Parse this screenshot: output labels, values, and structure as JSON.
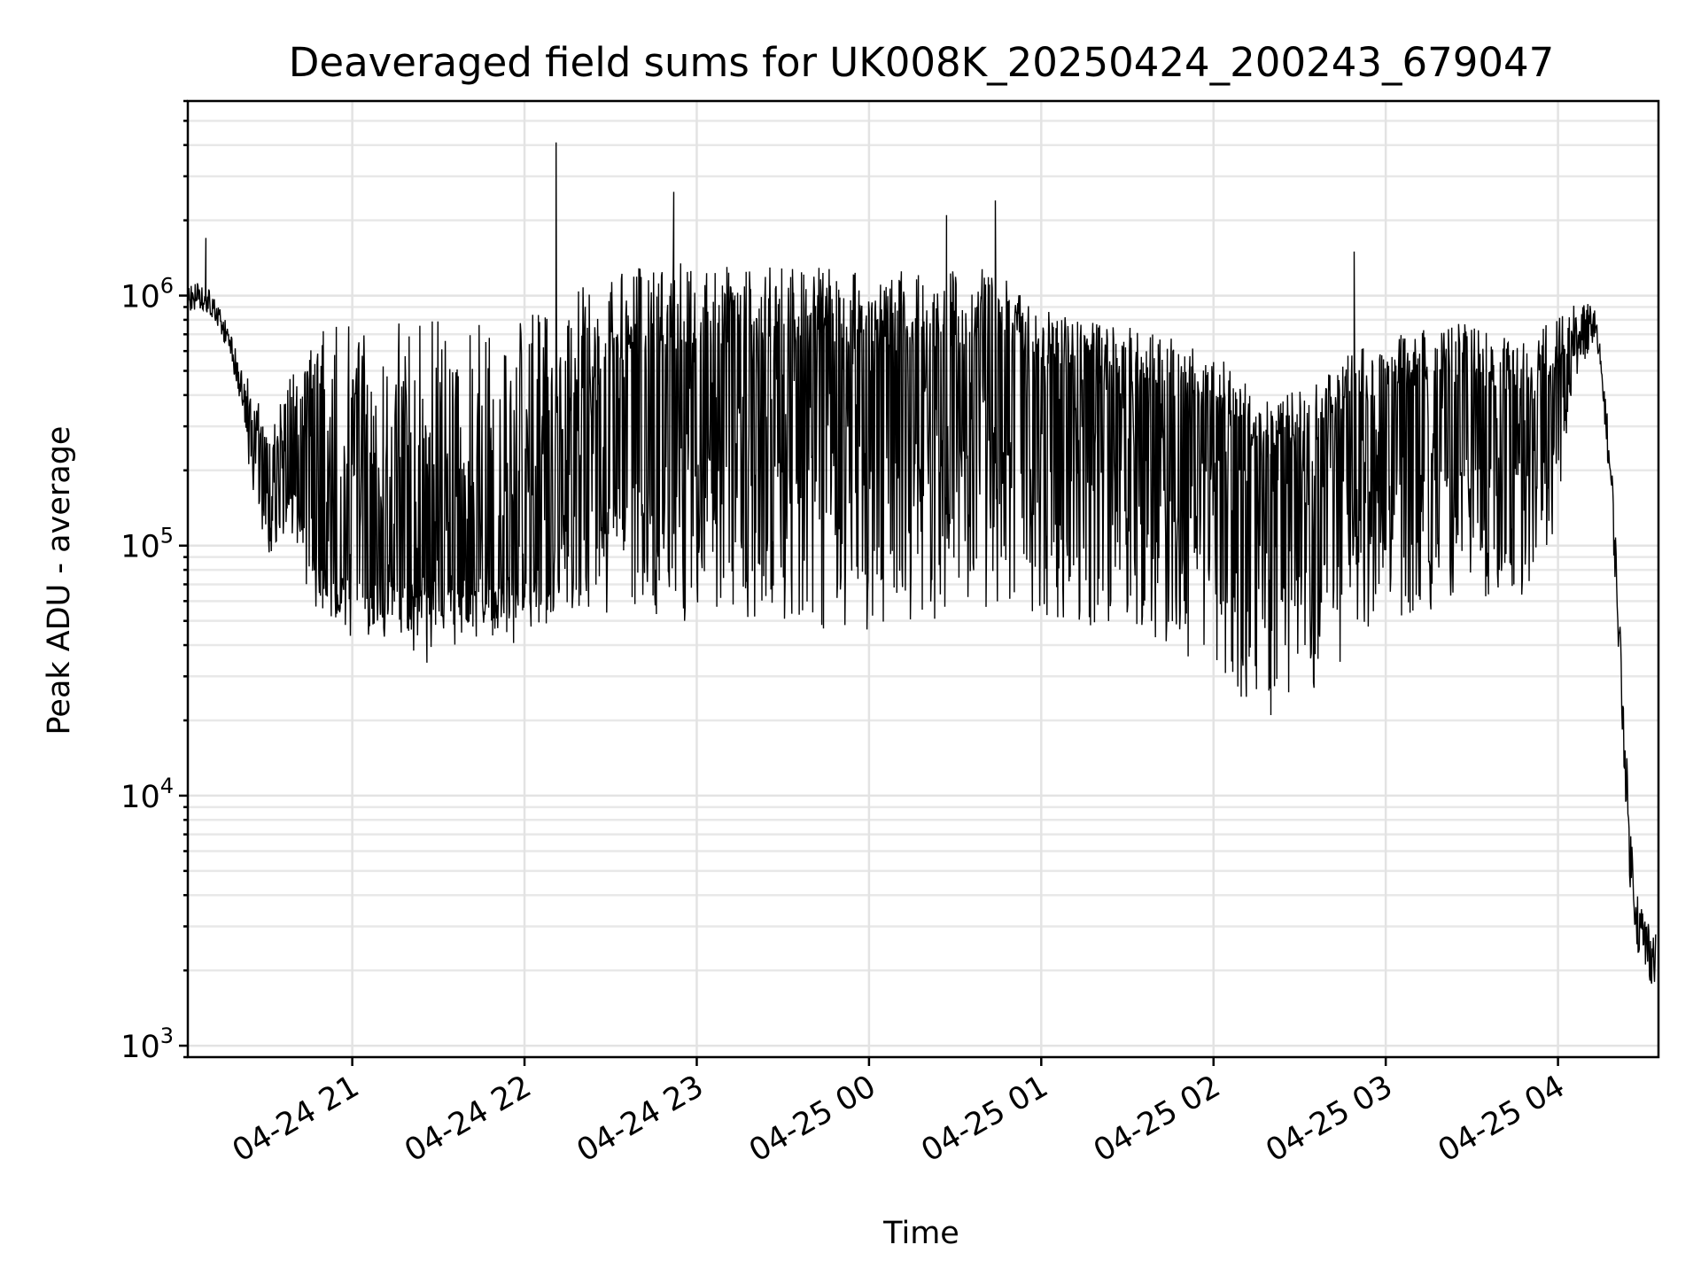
{
  "chart_data": {
    "type": "line",
    "title": "Deaveraged field sums for UK008K_20250424_200243_679047",
    "xlabel": "Time",
    "ylabel": "Peak ADU - average",
    "yscale": "log",
    "ylim": [
      900,
      6000000
    ],
    "xlim": [
      "2025-04-24 20:02:43",
      "2025-04-25 04:35:00"
    ],
    "grid": true,
    "x_ticks": [
      {
        "label": "04-24 21",
        "time": "2025-04-24 21:00"
      },
      {
        "label": "04-24 22",
        "time": "2025-04-24 22:00"
      },
      {
        "label": "04-24 23",
        "time": "2025-04-24 23:00"
      },
      {
        "label": "04-25 00",
        "time": "2025-04-25 00:00"
      },
      {
        "label": "04-25 01",
        "time": "2025-04-25 01:00"
      },
      {
        "label": "04-25 02",
        "time": "2025-04-25 02:00"
      },
      {
        "label": "04-25 03",
        "time": "2025-04-25 03:00"
      },
      {
        "label": "04-25 04",
        "time": "2025-04-25 04:00"
      }
    ],
    "y_ticks": [
      {
        "base": "10",
        "exp": "3",
        "value": 1000
      },
      {
        "base": "10",
        "exp": "4",
        "value": 10000
      },
      {
        "base": "10",
        "exp": "5",
        "value": 100000
      },
      {
        "base": "10",
        "exp": "6",
        "value": 1000000
      }
    ],
    "series_color": "#000000",
    "series": [
      {
        "x": [
          "2025-04-24 20:02:43",
          "2025-04-24 20:06:00",
          "2025-04-24 20:10:00",
          "2025-04-24 20:14:00",
          "2025-04-24 20:18:00",
          "2025-04-24 20:22:00",
          "2025-04-24 20:26:00",
          "2025-04-24 20:30:00",
          "2025-04-24 20:35:00",
          "2025-04-24 20:40:00",
          "2025-04-24 20:45:00",
          "2025-04-24 20:50:00",
          "2025-04-24 20:55:00",
          "2025-04-24 21:00:00",
          "2025-04-24 21:10:00",
          "2025-04-24 21:20:00",
          "2025-04-24 21:30:00",
          "2025-04-24 21:40:00",
          "2025-04-24 21:50:00",
          "2025-04-24 22:00:00",
          "2025-04-24 22:10:00",
          "2025-04-24 22:20:00",
          "2025-04-24 22:30:00",
          "2025-04-24 22:40:00",
          "2025-04-24 22:50:00",
          "2025-04-24 23:00:00",
          "2025-04-24 23:15:00",
          "2025-04-24 23:30:00",
          "2025-04-24 23:45:00",
          "2025-04-25 00:00:00",
          "2025-04-25 00:15:00",
          "2025-04-25 00:30:00",
          "2025-04-25 00:45:00",
          "2025-04-25 01:00:00",
          "2025-04-25 01:15:00",
          "2025-04-25 01:30:00",
          "2025-04-25 01:45:00",
          "2025-04-25 02:00:00",
          "2025-04-25 02:15:00",
          "2025-04-25 02:30:00",
          "2025-04-25 02:45:00",
          "2025-04-25 03:00:00",
          "2025-04-25 03:15:00",
          "2025-04-25 03:30:00",
          "2025-04-25 03:45:00",
          "2025-04-25 04:00:00",
          "2025-04-25 04:05:00",
          "2025-04-25 04:10:00",
          "2025-04-25 04:13:00",
          "2025-04-25 04:16:00",
          "2025-04-25 04:19:00",
          "2025-04-25 04:22:00",
          "2025-04-25 04:25:00",
          "2025-04-25 04:28:00",
          "2025-04-25 04:31:00",
          "2025-04-25 04:34:00"
        ],
        "center": [
          950000,
          1000000,
          950000,
          800000,
          600000,
          400000,
          250000,
          180000,
          200000,
          220000,
          160000,
          130000,
          110000,
          100000,
          95000,
          100000,
          105000,
          110000,
          105000,
          100000,
          150000,
          220000,
          300000,
          350000,
          380000,
          400000,
          450000,
          480000,
          480000,
          450000,
          430000,
          460000,
          480000,
          400000,
          350000,
          330000,
          300000,
          250000,
          200000,
          180000,
          250000,
          330000,
          340000,
          360000,
          330000,
          400000,
          600000,
          800000,
          750000,
          400000,
          150000,
          30000,
          6000,
          3000,
          2500,
          2200
        ],
        "low": [
          750000,
          850000,
          800000,
          600000,
          450000,
          280000,
          150000,
          90000,
          100000,
          110000,
          60000,
          50000,
          45000,
          42000,
          40000,
          38000,
          38000,
          40000,
          42000,
          40000,
          45000,
          50000,
          48000,
          50000,
          50000,
          50000,
          52000,
          50000,
          45000,
          45000,
          48000,
          52000,
          55000,
          50000,
          45000,
          45000,
          40000,
          30000,
          22000,
          25000,
          30000,
          50000,
          55000,
          60000,
          55000,
          120000,
          450000,
          550000,
          500000,
          300000,
          100000,
          18000,
          3000,
          1800,
          1500,
          1300
        ],
        "high": [
          1200000,
          1300000,
          1200000,
          900000,
          750000,
          550000,
          400000,
          350000,
          450000,
          500000,
          650000,
          750000,
          750000,
          760000,
          780000,
          800000,
          790000,
          780000,
          800000,
          820000,
          950000,
          1100000,
          1200000,
          1300000,
          1400000,
          1350000,
          1300000,
          1350000,
          1300000,
          1250000,
          1280000,
          1300000,
          1260000,
          900000,
          800000,
          750000,
          700000,
          600000,
          400000,
          420000,
          560000,
          700000,
          750000,
          780000,
          700000,
          800000,
          950000,
          1000000,
          950000,
          550000,
          250000,
          60000,
          9000,
          5500,
          4500,
          3500
        ],
        "spikes": [
          {
            "time": "2025-04-24 20:09:00",
            "value": 1700000
          },
          {
            "time": "2025-04-24 22:11:00",
            "value": 4100000
          },
          {
            "time": "2025-04-24 22:52:00",
            "value": 2600000
          },
          {
            "time": "2025-04-25 00:27:00",
            "value": 2100000
          },
          {
            "time": "2025-04-25 00:44:00",
            "value": 2400000
          },
          {
            "time": "2025-04-25 02:20:00",
            "value": 21000
          },
          {
            "time": "2025-04-25 02:35:00",
            "value": 27000
          },
          {
            "time": "2025-04-25 02:49:00",
            "value": 1500000
          },
          {
            "time": "2025-04-24 21:26:00",
            "value": 34000
          }
        ]
      }
    ]
  }
}
